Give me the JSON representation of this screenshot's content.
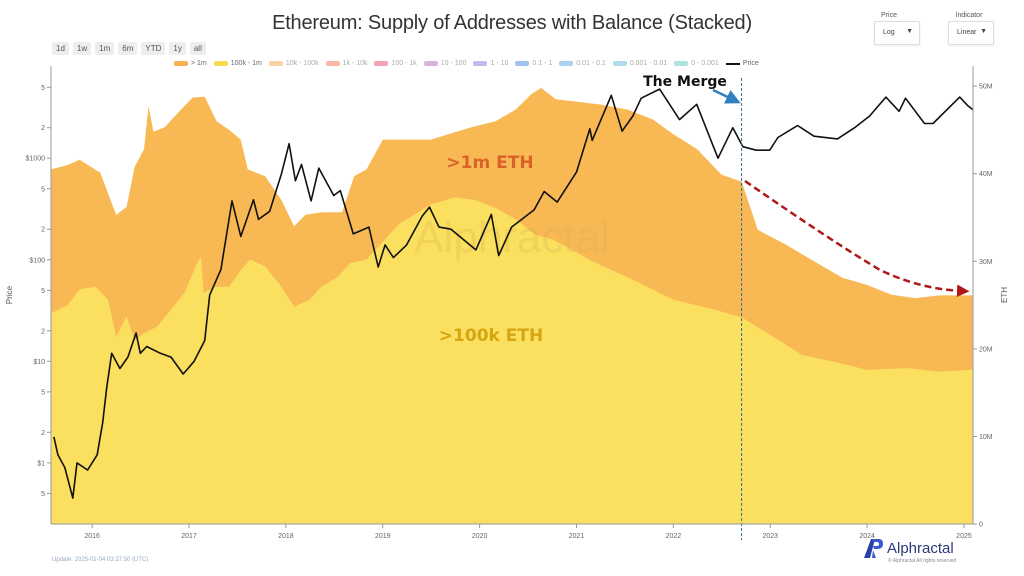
{
  "title": "Ethereum: Supply of Addresses with Balance (Stacked)",
  "controls": {
    "price_label": "Price",
    "price_value": "Log",
    "indicator_label": "Indicator",
    "indicator_value": "Linear",
    "ranges": [
      "1d",
      "1w",
      "1m",
      "6m",
      "YTD",
      "1y",
      "all"
    ]
  },
  "legend": [
    {
      "label": "> 1m",
      "color": "#f6b04d"
    },
    {
      "label": "100k - 1m",
      "color": "#f8dc50"
    },
    {
      "label": "10k - 100k",
      "color": "#f9d3a6"
    },
    {
      "label": "1k - 10k",
      "color": "#f7b9a6"
    },
    {
      "label": "100 - 1k",
      "color": "#f2a2b2"
    },
    {
      "label": "10 - 100",
      "color": "#d9b3d9"
    },
    {
      "label": "1 - 10",
      "color": "#c2bbea"
    },
    {
      "label": "0.1 - 1",
      "color": "#a3c2f0"
    },
    {
      "label": "0.01 - 0.1",
      "color": "#a9d1f1"
    },
    {
      "label": "0.001 - 0.01",
      "color": "#b1dcec"
    },
    {
      "label": "0 - 0.001",
      "color": "#b0e2dc"
    },
    {
      "label": "Price",
      "color": "#111111"
    }
  ],
  "annotations": {
    "merge": "The Merge",
    "gt1m": ">1m ETH",
    "gt100k": ">100k ETH",
    "watermark": "Alphractal",
    "merge_date": "2022-09-15"
  },
  "footer": {
    "update": "Update: 2025-02-04 03:37:50 (UTC)",
    "logo": "Alphractal",
    "copyright": "© Alphractal All rights reserved"
  },
  "chart_data": {
    "type": "area",
    "title": "Ethereum: Supply of Addresses with Balance (Stacked)",
    "xlabel": "",
    "ylabel_left": "Price",
    "ylabel_right": "ETH",
    "x_ticks": [
      "2016",
      "2017",
      "2018",
      "2019",
      "2020",
      "2021",
      "2022",
      "2023",
      "2024",
      "2025"
    ],
    "x_range": [
      "2015-07-30",
      "2025-02-04"
    ],
    "left_axis": {
      "scale": "log",
      "range": [
        0.25,
        8100
      ],
      "ticks": [
        {
          "v": 0.5,
          "l": "5"
        },
        {
          "v": 1,
          "l": "$1"
        },
        {
          "v": 2,
          "l": "2"
        },
        {
          "v": 5,
          "l": "5"
        },
        {
          "v": 10,
          "l": "$10"
        },
        {
          "v": 20,
          "l": "2"
        },
        {
          "v": 50,
          "l": "5"
        },
        {
          "v": 100,
          "l": "$100"
        },
        {
          "v": 200,
          "l": "2"
        },
        {
          "v": 500,
          "l": "5"
        },
        {
          "v": 1000,
          "l": "$1000"
        },
        {
          "v": 2000,
          "l": "2"
        },
        {
          "v": 5000,
          "l": "5"
        }
      ]
    },
    "right_axis": {
      "scale": "linear",
      "unit": "ETH",
      "range": [
        0,
        52.3
      ],
      "ticks": [
        {
          "v": 0,
          "l": "0"
        },
        {
          "v": 10,
          "l": "10M"
        },
        {
          "v": 20,
          "l": "20M"
        },
        {
          "v": 30,
          "l": "30M"
        },
        {
          "v": 40,
          "l": "40M"
        },
        {
          "v": 50,
          "l": "50M"
        }
      ]
    },
    "grid": false,
    "legend_position": "top",
    "series": [
      {
        "name": "100k - 1m",
        "unit": "million ETH (stack top)",
        "color": "#fbdf5e",
        "points": [
          [
            "2015-08-01",
            24.1
          ],
          [
            "2015-10-01",
            25.0
          ],
          [
            "2015-11-15",
            26.8
          ],
          [
            "2016-01-15",
            27.1
          ],
          [
            "2016-03-01",
            25.6
          ],
          [
            "2016-04-01",
            21.4
          ],
          [
            "2016-05-10",
            23.7
          ],
          [
            "2016-06-10",
            21.0
          ],
          [
            "2016-07-15",
            21.8
          ],
          [
            "2016-09-01",
            22.5
          ],
          [
            "2016-10-15",
            24.1
          ],
          [
            "2016-12-15",
            26.4
          ],
          [
            "2017-02-01",
            29.8
          ],
          [
            "2017-02-15",
            30.5
          ],
          [
            "2017-02-25",
            26.4
          ],
          [
            "2017-04-15",
            27.1
          ],
          [
            "2017-06-01",
            27.1
          ],
          [
            "2017-07-15",
            29.0
          ],
          [
            "2017-08-20",
            30.2
          ],
          [
            "2017-10-15",
            29.4
          ],
          [
            "2017-12-15",
            27.1
          ],
          [
            "2018-02-01",
            24.8
          ],
          [
            "2018-04-01",
            25.6
          ],
          [
            "2018-05-15",
            27.1
          ],
          [
            "2018-07-15",
            28.2
          ],
          [
            "2018-09-01",
            29.8
          ],
          [
            "2018-11-01",
            30.2
          ],
          [
            "2019-03-01",
            34.2
          ],
          [
            "2019-07-01",
            36.5
          ],
          [
            "2019-10-01",
            37.3
          ],
          [
            "2019-12-15",
            37.0
          ],
          [
            "2020-03-01",
            36.1
          ],
          [
            "2020-05-15",
            34.8
          ],
          [
            "2020-08-01",
            33.0
          ],
          [
            "2020-10-01",
            32.5
          ],
          [
            "2020-12-15",
            31.3
          ],
          [
            "2021-03-01",
            30.0
          ],
          [
            "2021-08-01",
            27.9
          ],
          [
            "2022-01-01",
            25.6
          ],
          [
            "2022-06-01",
            24.5
          ],
          [
            "2022-09-15",
            23.6
          ],
          [
            "2023-01-01",
            21.6
          ],
          [
            "2023-05-01",
            19.3
          ],
          [
            "2023-09-01",
            18.5
          ],
          [
            "2024-01-01",
            17.6
          ],
          [
            "2024-06-01",
            17.8
          ],
          [
            "2024-10-01",
            17.4
          ],
          [
            "2025-02-04",
            17.6
          ]
        ]
      },
      {
        "name": "> 1m",
        "unit": "million ETH (stack top)",
        "color": "#f8b955",
        "points": [
          [
            "2015-08-01",
            40.5
          ],
          [
            "2015-10-01",
            41.0
          ],
          [
            "2015-11-15",
            41.6
          ],
          [
            "2016-02-01",
            40.1
          ],
          [
            "2016-04-01",
            35.3
          ],
          [
            "2016-05-10",
            36.2
          ],
          [
            "2016-06-10",
            40.8
          ],
          [
            "2016-07-15",
            42.8
          ],
          [
            "2016-08-01",
            47.7
          ],
          [
            "2016-08-20",
            44.8
          ],
          [
            "2016-10-01",
            45.3
          ],
          [
            "2016-12-01",
            47.3
          ],
          [
            "2017-01-15",
            48.7
          ],
          [
            "2017-03-01",
            48.8
          ],
          [
            "2017-04-15",
            46.0
          ],
          [
            "2017-06-01",
            45.0
          ],
          [
            "2017-07-15",
            43.9
          ],
          [
            "2017-08-10",
            40.5
          ],
          [
            "2017-10-15",
            39.7
          ],
          [
            "2017-12-15",
            37.0
          ],
          [
            "2018-02-01",
            34.0
          ],
          [
            "2018-03-15",
            35.3
          ],
          [
            "2018-05-15",
            35.6
          ],
          [
            "2018-08-01",
            35.6
          ],
          [
            "2018-09-15",
            39.7
          ],
          [
            "2018-11-01",
            40.5
          ],
          [
            "2019-01-01",
            43.9
          ],
          [
            "2019-07-01",
            43.9
          ],
          [
            "2019-12-01",
            45.3
          ],
          [
            "2020-03-01",
            46.0
          ],
          [
            "2020-05-15",
            47.3
          ],
          [
            "2020-07-15",
            49.1
          ],
          [
            "2020-08-20",
            49.8
          ],
          [
            "2020-10-15",
            48.5
          ],
          [
            "2021-04-01",
            47.9
          ],
          [
            "2021-07-15",
            47.3
          ],
          [
            "2021-10-15",
            46.2
          ],
          [
            "2022-01-01",
            44.5
          ],
          [
            "2022-04-01",
            42.8
          ],
          [
            "2022-07-01",
            39.9
          ],
          [
            "2022-09-15",
            39.1
          ],
          [
            "2022-11-15",
            33.6
          ],
          [
            "2023-03-01",
            31.9
          ],
          [
            "2023-06-15",
            30.0
          ],
          [
            "2023-10-01",
            28.1
          ],
          [
            "2024-01-01",
            27.3
          ],
          [
            "2024-04-01",
            26.2
          ],
          [
            "2024-07-01",
            25.8
          ],
          [
            "2024-10-01",
            26.1
          ],
          [
            "2025-02-04",
            26.1
          ]
        ]
      },
      {
        "name": "Price",
        "unit": "USD",
        "color": "#111111",
        "points": [
          [
            "2015-08-10",
            1.8
          ],
          [
            "2015-08-25",
            1.2
          ],
          [
            "2015-09-20",
            0.9
          ],
          [
            "2015-10-20",
            0.45
          ],
          [
            "2015-11-05",
            1.0
          ],
          [
            "2015-12-15",
            0.85
          ],
          [
            "2016-01-20",
            1.2
          ],
          [
            "2016-02-10",
            2.5
          ],
          [
            "2016-02-25",
            5.5
          ],
          [
            "2016-03-15",
            12
          ],
          [
            "2016-04-15",
            8.5
          ],
          [
            "2016-05-15",
            11
          ],
          [
            "2016-06-15",
            19
          ],
          [
            "2016-07-01",
            12
          ],
          [
            "2016-07-25",
            14
          ],
          [
            "2016-09-15",
            12
          ],
          [
            "2016-10-25",
            11
          ],
          [
            "2016-12-10",
            7.5
          ],
          [
            "2017-01-20",
            10
          ],
          [
            "2017-03-01",
            16
          ],
          [
            "2017-03-20",
            45
          ],
          [
            "2017-05-01",
            80
          ],
          [
            "2017-06-12",
            380
          ],
          [
            "2017-07-15",
            170
          ],
          [
            "2017-09-01",
            390
          ],
          [
            "2017-09-20",
            250
          ],
          [
            "2017-11-01",
            300
          ],
          [
            "2017-12-15",
            700
          ],
          [
            "2018-01-13",
            1390
          ],
          [
            "2018-02-06",
            600
          ],
          [
            "2018-03-01",
            870
          ],
          [
            "2018-04-06",
            380
          ],
          [
            "2018-05-05",
            800
          ],
          [
            "2018-06-30",
            430
          ],
          [
            "2018-07-25",
            480
          ],
          [
            "2018-09-12",
            180
          ],
          [
            "2018-11-10",
            210
          ],
          [
            "2018-12-15",
            85
          ],
          [
            "2019-01-10",
            140
          ],
          [
            "2019-02-10",
            105
          ],
          [
            "2019-04-01",
            140
          ],
          [
            "2019-05-30",
            270
          ],
          [
            "2019-06-26",
            330
          ],
          [
            "2019-08-01",
            210
          ],
          [
            "2019-09-15",
            200
          ],
          [
            "2019-12-18",
            125
          ],
          [
            "2020-02-14",
            280
          ],
          [
            "2020-03-13",
            110
          ],
          [
            "2020-05-01",
            210
          ],
          [
            "2020-07-25",
            310
          ],
          [
            "2020-09-01",
            470
          ],
          [
            "2020-10-20",
            370
          ],
          [
            "2021-01-01",
            730
          ],
          [
            "2021-02-20",
            1950
          ],
          [
            "2021-03-01",
            1500
          ],
          [
            "2021-05-12",
            4170
          ],
          [
            "2021-06-22",
            1850
          ],
          [
            "2021-08-01",
            2600
          ],
          [
            "2021-09-02",
            3900
          ],
          [
            "2021-11-10",
            4800
          ],
          [
            "2022-01-24",
            2400
          ],
          [
            "2022-03-30",
            3400
          ],
          [
            "2022-06-18",
            1000
          ],
          [
            "2022-08-13",
            2000
          ],
          [
            "2022-09-20",
            1300
          ],
          [
            "2022-11-09",
            1200
          ],
          [
            "2022-12-30",
            1200
          ],
          [
            "2023-01-30",
            1600
          ],
          [
            "2023-04-14",
            2100
          ],
          [
            "2023-06-15",
            1650
          ],
          [
            "2023-09-11",
            1550
          ],
          [
            "2023-11-15",
            2000
          ],
          [
            "2024-01-10",
            2600
          ],
          [
            "2024-03-12",
            4000
          ],
          [
            "2024-05-01",
            2900
          ],
          [
            "2024-05-25",
            3900
          ],
          [
            "2024-08-05",
            2200
          ],
          [
            "2024-09-06",
            2200
          ],
          [
            "2024-12-16",
            4000
          ],
          [
            "2025-01-15",
            3300
          ],
          [
            "2025-02-04",
            3000
          ]
        ]
      }
    ]
  }
}
